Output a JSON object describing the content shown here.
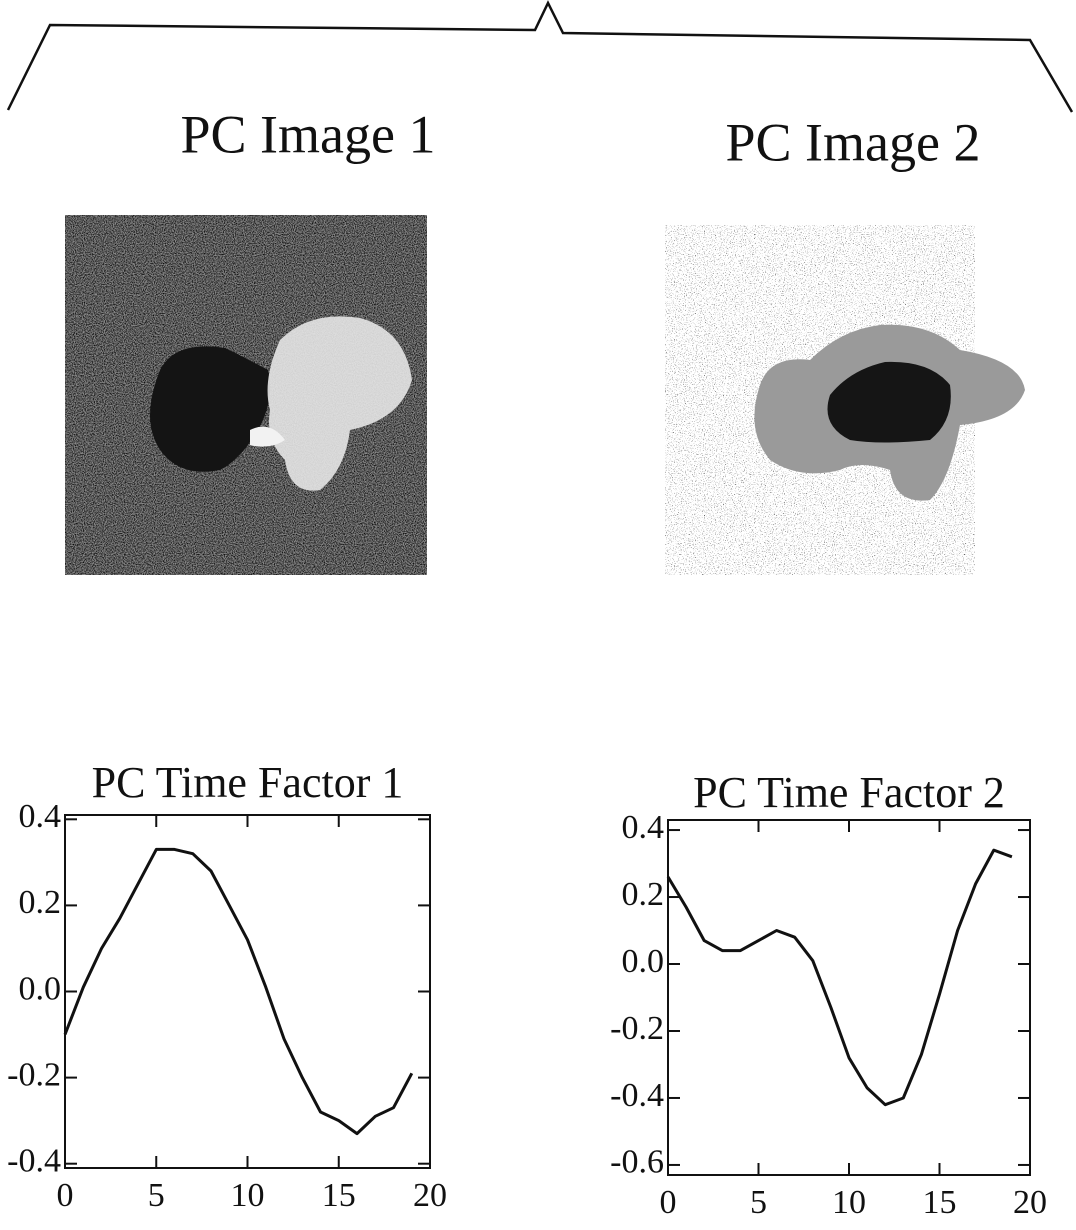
{
  "images": [
    {
      "title": "PC Image 1"
    },
    {
      "title": "PC Image 2"
    }
  ],
  "chart_data": [
    {
      "type": "line",
      "title": "PC Time Factor 1",
      "x": [
        0,
        1,
        2,
        3,
        4,
        5,
        6,
        7,
        8,
        9,
        10,
        11,
        12,
        13,
        14,
        15,
        16,
        17,
        18,
        19
      ],
      "values": [
        -0.1,
        0.01,
        0.1,
        0.17,
        0.25,
        0.33,
        0.33,
        0.32,
        0.28,
        0.2,
        0.12,
        0.01,
        -0.11,
        -0.2,
        -0.28,
        -0.3,
        -0.33,
        -0.29,
        -0.27,
        -0.19
      ],
      "color": "#111111",
      "xlim": [
        0,
        20
      ],
      "xticks": [
        0,
        5,
        10,
        15,
        20
      ],
      "ylim": [
        -0.41,
        0.41
      ],
      "yticks": [
        -0.4,
        -0.2,
        {
          "value": 0,
          "label": "0.0"
        },
        0.2,
        0.4
      ]
    },
    {
      "type": "line",
      "title": "PC Time Factor 2",
      "x": [
        0,
        1,
        2,
        3,
        4,
        5,
        6,
        7,
        8,
        9,
        10,
        11,
        12,
        13,
        14,
        15,
        16,
        17,
        18,
        19
      ],
      "values": [
        0.26,
        0.17,
        0.07,
        0.04,
        0.04,
        0.07,
        0.1,
        0.08,
        0.01,
        -0.13,
        -0.28,
        -0.37,
        -0.42,
        -0.4,
        -0.27,
        -0.09,
        0.1,
        0.24,
        0.34,
        0.32
      ],
      "color": "#111111",
      "xlim": [
        0,
        20
      ],
      "xticks": [
        0,
        5,
        10,
        15,
        20
      ],
      "ylim": [
        -0.63,
        0.43
      ],
      "yticks": [
        -0.6,
        -0.4,
        -0.2,
        {
          "value": 0,
          "label": "0.0"
        },
        0.2,
        0.4
      ]
    }
  ]
}
